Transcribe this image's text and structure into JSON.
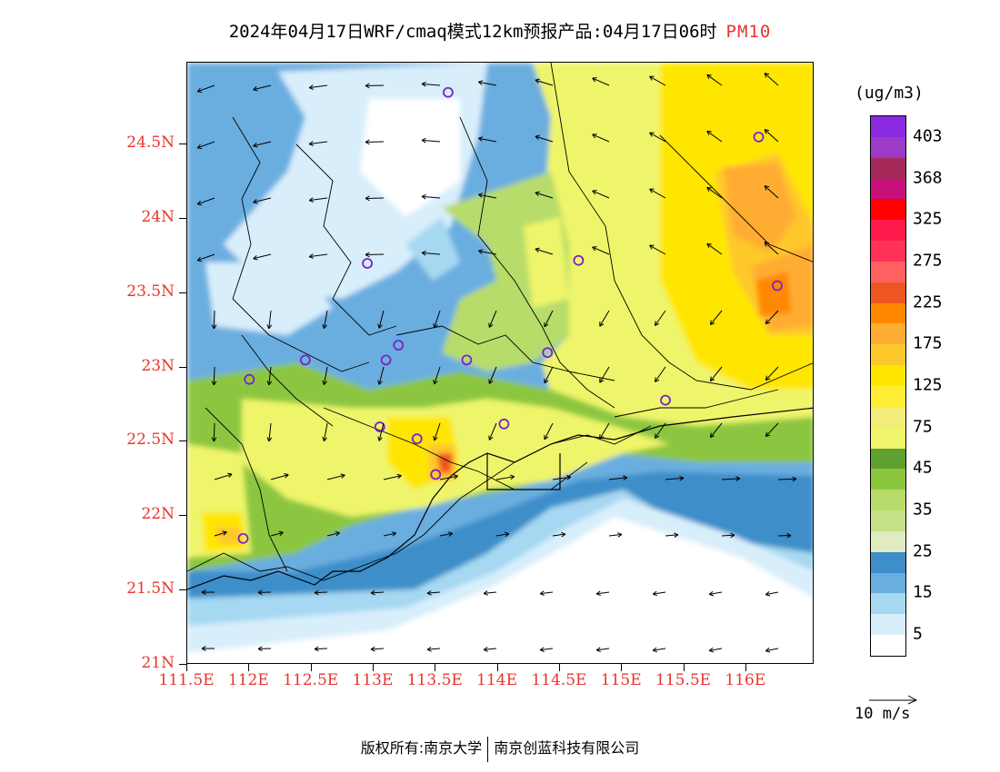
{
  "title": {
    "main": "2024年04月17日WRF/cmaq模式12km预报产品:04月17日06时",
    "pollutant": "PM10"
  },
  "map": {
    "lat_labels": [
      "24.5N",
      "24N",
      "23.5N",
      "23N",
      "22.5N",
      "22N",
      "21.5N",
      "21N"
    ],
    "lon_labels": [
      "111.5E",
      "112E",
      "112.5E",
      "113E",
      "113.5E",
      "114E",
      "114.5E",
      "115E",
      "115.5E",
      "116E"
    ],
    "lon_range": [
      111.5,
      116.55
    ],
    "lat_range": [
      21.0,
      25.05
    ],
    "label_color": "#e8342d"
  },
  "legend": {
    "unit": "(ug/m3)",
    "labels": [
      "403",
      "368",
      "325",
      "275",
      "225",
      "175",
      "125",
      "75",
      "45",
      "35",
      "25",
      "15",
      "5"
    ],
    "colors": [
      "#8a2be2",
      "#9b3bc8",
      "#a52a5a",
      "#c8107a",
      "#ff0000",
      "#ff1a4b",
      "#ff3355",
      "#ff6060",
      "#ee5522",
      "#ff8800",
      "#ffad33",
      "#ffc82a",
      "#ffe600",
      "#ffee33",
      "#f4ec7a",
      "#eef56a",
      "#60a030",
      "#8cc63f",
      "#b8dc6a",
      "#c5e085",
      "#e0ecc0",
      "#3d8ec9",
      "#6aaee0",
      "#a6d8f2",
      "#d8eefb",
      "#ffffff"
    ]
  },
  "wind_reference": {
    "label": "10 m/s"
  },
  "copyright": {
    "left": "版权所有:南京大学",
    "right": "南京创蓝科技有限公司"
  },
  "stations": [
    {
      "lon": 113.6,
      "lat": 24.85
    },
    {
      "lon": 116.1,
      "lat": 24.55
    },
    {
      "lon": 112.95,
      "lat": 23.7
    },
    {
      "lon": 114.65,
      "lat": 23.72
    },
    {
      "lon": 116.25,
      "lat": 23.55
    },
    {
      "lon": 113.2,
      "lat": 23.15
    },
    {
      "lon": 113.1,
      "lat": 23.05
    },
    {
      "lon": 112.45,
      "lat": 23.05
    },
    {
      "lon": 113.75,
      "lat": 23.05
    },
    {
      "lon": 114.4,
      "lat": 23.1
    },
    {
      "lon": 112.0,
      "lat": 22.92
    },
    {
      "lon": 115.35,
      "lat": 22.78
    },
    {
      "lon": 113.05,
      "lat": 22.6
    },
    {
      "lon": 113.35,
      "lat": 22.52
    },
    {
      "lon": 114.05,
      "lat": 22.62
    },
    {
      "lon": 113.5,
      "lat": 22.28
    },
    {
      "lon": 111.95,
      "lat": 21.85
    }
  ],
  "station_color": "#7b22c9"
}
